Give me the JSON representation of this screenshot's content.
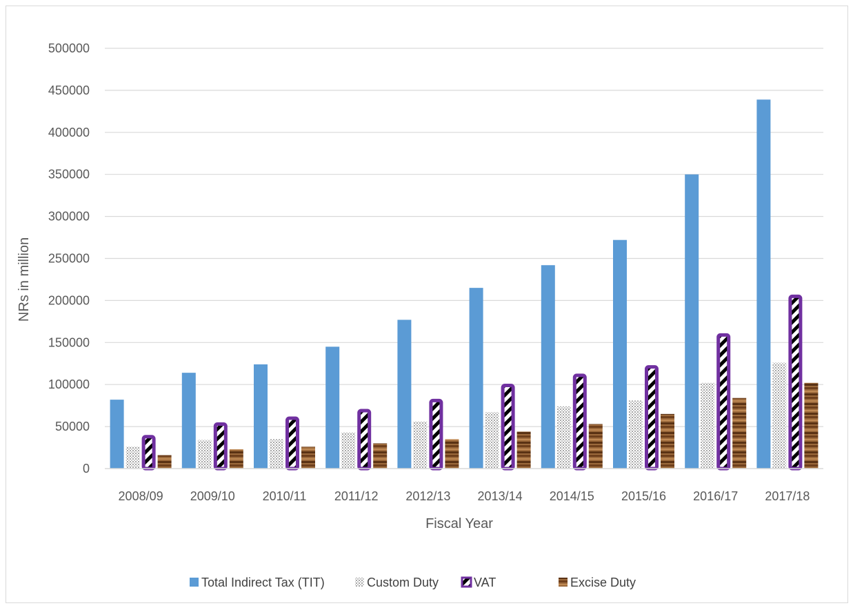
{
  "chart_data": {
    "type": "bar",
    "title": "",
    "xlabel": "Fiscal Year",
    "ylabel": "NRs in million",
    "ylim": [
      0,
      500000
    ],
    "yticks": [
      0,
      50000,
      100000,
      150000,
      200000,
      250000,
      300000,
      350000,
      400000,
      450000,
      500000
    ],
    "grid": true,
    "legend_position": "bottom",
    "categories": [
      "2008/09",
      "2009/10",
      "2010/11",
      "2011/12",
      "2012/13",
      "2013/14",
      "2014/15",
      "2015/16",
      "2016/17",
      "2017/18"
    ],
    "series": [
      {
        "name": "Total Indirect Tax (TIT)",
        "color": "#5b9bd5",
        "values": [
          82000,
          114000,
          124000,
          145000,
          177000,
          215000,
          242000,
          272000,
          350000,
          439000
        ]
      },
      {
        "name": "Custom Duty",
        "color": "#bfbfbf",
        "values": [
          26000,
          34000,
          35000,
          43000,
          56000,
          67000,
          74000,
          81000,
          102000,
          126000
        ]
      },
      {
        "name": "VAT",
        "color": "#7030a0",
        "values": [
          40000,
          55000,
          62000,
          71000,
          83000,
          101000,
          113000,
          123000,
          161000,
          207000
        ]
      },
      {
        "name": "Excise Duty",
        "color": "#8b5a2b",
        "values": [
          16000,
          23000,
          26000,
          30000,
          35000,
          44000,
          53000,
          65000,
          84000,
          102000
        ]
      }
    ]
  }
}
